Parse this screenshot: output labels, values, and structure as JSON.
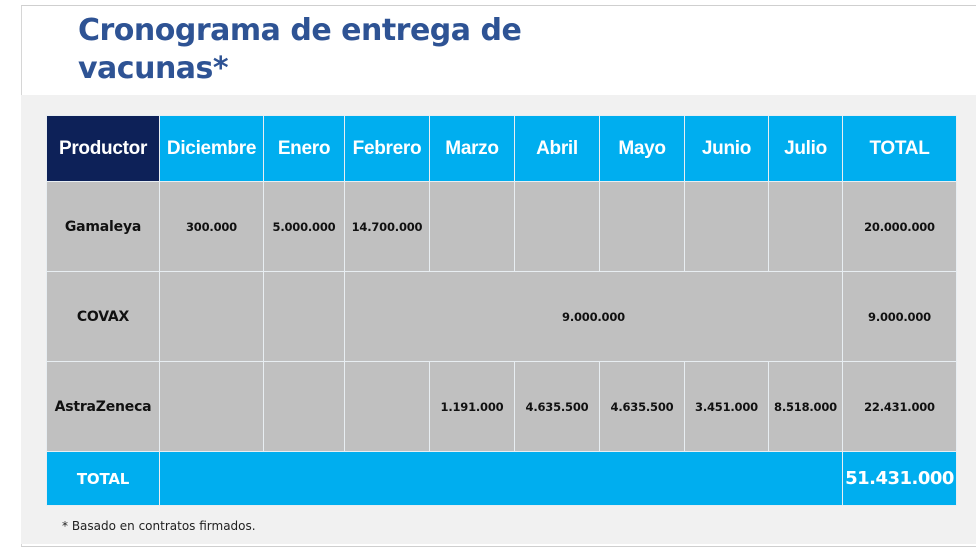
{
  "title": "Cronograma de entrega de vacunas*",
  "table": {
    "headers": [
      "Productor",
      "Diciembre",
      "Enero",
      "Febrero",
      "Marzo",
      "Abril",
      "Mayo",
      "Junio",
      "Julio",
      "TOTAL"
    ],
    "rows": [
      {
        "producer": "Gamaleya",
        "diciembre": "300.000",
        "enero": "5.000.000",
        "febrero": "14.700.000",
        "marzo": "",
        "abril": "",
        "mayo": "",
        "junio": "",
        "julio": "",
        "total": "20.000.000"
      },
      {
        "producer": "COVAX",
        "diciembre": "",
        "enero": "",
        "febrero_julio": "9.000.000",
        "total": "9.000.000"
      },
      {
        "producer": "AstraZeneca",
        "diciembre": "",
        "enero": "",
        "febrero": "",
        "marzo": "1.191.000",
        "abril": "4.635.500",
        "mayo": "4.635.500",
        "junio": "3.451.000",
        "julio": "8.518.000",
        "total": "22.431.000"
      }
    ],
    "total_row": {
      "label": "TOTAL",
      "value": "51.431.000"
    }
  },
  "footnote": "* Basado en contratos firmados.",
  "colors": {
    "title": "#2e5394",
    "header": "#00aeef",
    "producer_header": "#0d2158",
    "cell": "#c0c0c0"
  }
}
